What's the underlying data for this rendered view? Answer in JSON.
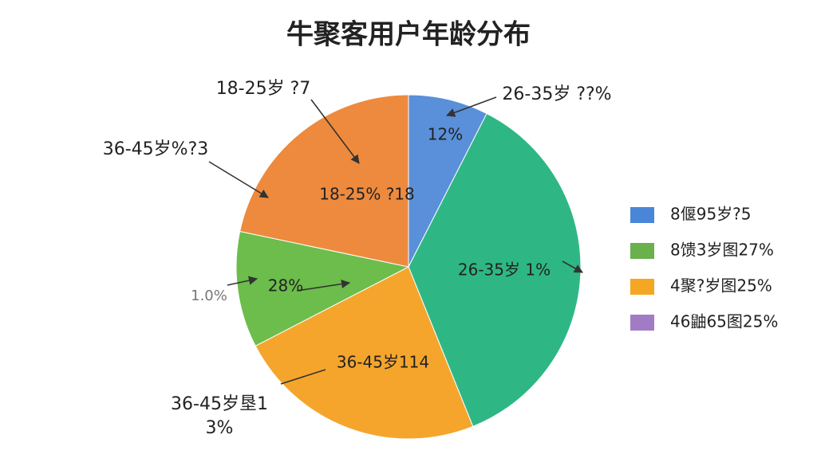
{
  "chart_data": {
    "type": "pie",
    "title": "牛聚客用户年龄分布",
    "values": [
      7.5,
      36.4,
      23.5,
      10.9,
      21.7
    ],
    "colors": [
      "#5a8fd9",
      "#2eb785",
      "#f5a52c",
      "#6cbd4b",
      "#ee8a3d"
    ],
    "slice_labels": [
      "12%",
      "26-35岁 1%",
      "36-45岁114",
      "28%",
      "18-25% ?18"
    ],
    "annotations": [
      "18-25岁 ?7",
      "26-35岁 ??%",
      "36-45岁%?3",
      "1.0%",
      "36-45岁垦1",
      "3%"
    ],
    "legend": [
      {
        "label": "8偃95岁?5",
        "color": "#4a86d8"
      },
      {
        "label": "8馈3岁图27%",
        "color": "#6ab04c"
      },
      {
        "label": "4聚?岁图25%",
        "color": "#f5a623"
      },
      {
        "label": "46鼬65图25%",
        "color": "#a07cc5"
      }
    ]
  }
}
